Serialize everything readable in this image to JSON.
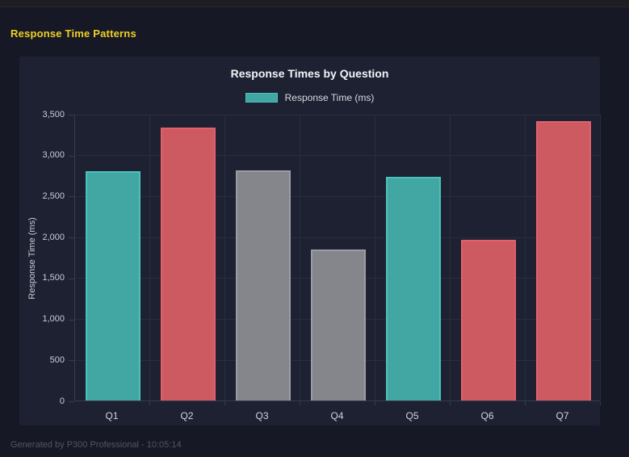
{
  "page": {
    "title": "Response Time Patterns"
  },
  "footer": {
    "text": "Generated by P300 Professional - 10:05:14"
  },
  "chart_data": {
    "type": "bar",
    "title": "Response Times by Question",
    "legend": {
      "label": "Response Time (ms)",
      "position": "top"
    },
    "categories": [
      "Q1",
      "Q2",
      "Q3",
      "Q4",
      "Q5",
      "Q6",
      "Q7"
    ],
    "series": [
      {
        "name": "Response Time (ms)",
        "values": [
          2800,
          3330,
          2810,
          1840,
          2730,
          1960,
          3410
        ]
      }
    ],
    "bar_colors": [
      "#42a7a2",
      "#cd5a60",
      "#85858c",
      "#85858c",
      "#42a7a2",
      "#cd5a60",
      "#cd5a60"
    ],
    "bar_border_colors": [
      "#4cc0ba",
      "#e2606b",
      "#9c9ca4",
      "#9c9ca4",
      "#4cc0ba",
      "#e2606b",
      "#e2606b"
    ],
    "xlabel": "",
    "ylabel": "Response Time (ms)",
    "ylim": [
      0,
      3500
    ],
    "ytick_step": 500,
    "grid": true
  },
  "colors": {
    "page_background": "#161925",
    "panel_background": "#1d2132",
    "heading_yellow": "#f0d024",
    "teal": "#42a7a2",
    "red": "#cd5a60",
    "gray": "#85858c",
    "gridline": "#2a2d3e",
    "axis": "#383b4e",
    "footer_text": "#4f5468"
  }
}
